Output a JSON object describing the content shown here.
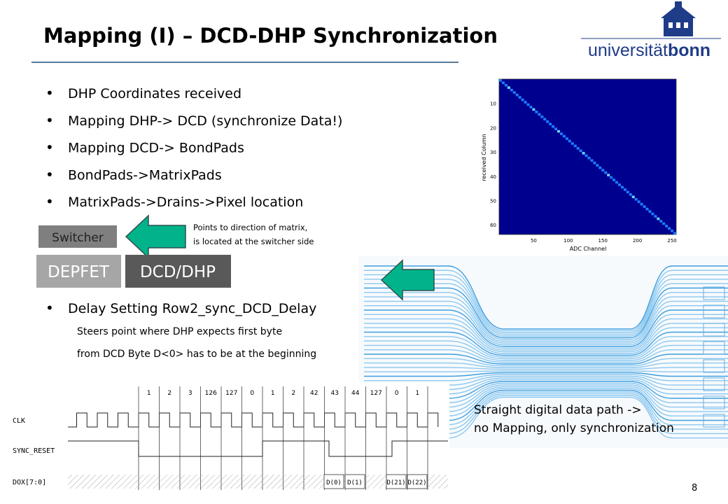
{
  "header": {
    "title": "Mapping (I) – DCD-DHP Synchronization",
    "logo_light": "universität",
    "logo_bold": "bonn"
  },
  "bullets": [
    "DHP Coordinates received",
    "Mapping DHP-> DCD (synchronize Data!)",
    "Mapping DCD-> BondPads",
    "BondPads->MatrixPads",
    "MatrixPads->Drains->Pixel location"
  ],
  "switcher": {
    "label": "Switcher",
    "note": [
      "Points to direction of matrix,",
      "is located at the switcher side"
    ]
  },
  "blocks": [
    "DEPFET",
    "DCD/DHP"
  ],
  "delay": {
    "bullet": "Delay Setting Row2_sync_DCD_Delay",
    "lines": [
      "Steers point where DHP expects first byte",
      "from DCD Byte D<0> has to be at the beginning"
    ]
  },
  "heatmap": {
    "ylabel": "received Column",
    "xlabel": "ADC Channel",
    "yticks": [
      10,
      20,
      30,
      40,
      50,
      60
    ],
    "xticks": [
      50,
      100,
      150,
      200,
      250
    ]
  },
  "caption": [
    "Straight digital data path ->",
    "no Mapping, only synchronization"
  ],
  "timing": {
    "signals": [
      "CLK",
      "SYNC_RESET",
      "DOX[7:0]"
    ],
    "cycles": [
      "1",
      "2",
      "3",
      "126",
      "127",
      "0",
      "1",
      "2",
      "42",
      "43",
      "44",
      "127",
      "0",
      "1"
    ],
    "data": [
      "D(0)",
      "D(1)",
      "D(21)",
      "D(22)"
    ]
  },
  "page_number": "8"
}
